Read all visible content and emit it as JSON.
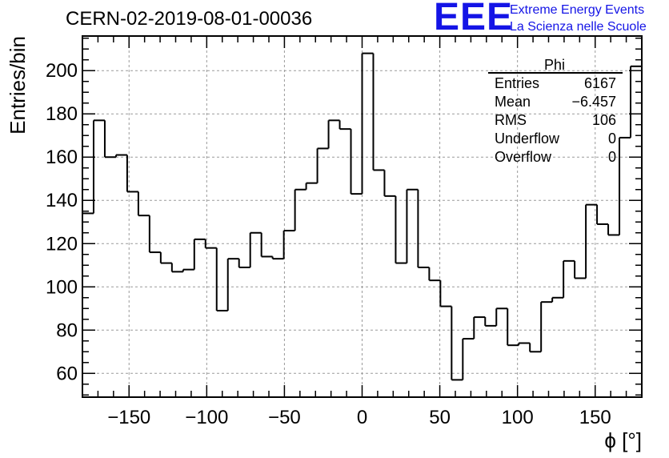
{
  "header": {
    "run_title": "CERN-02-2019-08-01-00036",
    "logo_text": "EEE",
    "logo_line1": "Extreme Energy Events",
    "logo_line2": "La Scienza nelle Scuole"
  },
  "colors": {
    "logo": "#1414e6",
    "histogram": "#000000",
    "grid": "#9a9a9a"
  },
  "stats_box": {
    "title": "Phi",
    "rows": [
      {
        "label": "Entries",
        "value": "6167"
      },
      {
        "label": "Mean",
        "value": "−6.457"
      },
      {
        "label": "RMS",
        "value": "106"
      },
      {
        "label": "Underflow",
        "value": "0"
      },
      {
        "label": "Overflow",
        "value": "0"
      }
    ]
  },
  "chart_data": {
    "type": "histogram",
    "xlabel": "ϕ [°]",
    "ylabel": "Entries/bin",
    "xlim": [
      -180,
      180
    ],
    "ylim": [
      49,
      216
    ],
    "grid": true,
    "bin_width": 7.2,
    "bin_edges_start": -180,
    "x_ticks": [
      -150,
      -100,
      -50,
      0,
      50,
      100,
      150
    ],
    "x_tick_labels": [
      "−150",
      "−100",
      "−50",
      "0",
      "50",
      "100",
      "150"
    ],
    "y_ticks": [
      60,
      80,
      100,
      120,
      140,
      160,
      180,
      200
    ],
    "y_tick_labels": [
      "60",
      "80",
      "100",
      "120",
      "140",
      "160",
      "180",
      "200"
    ],
    "values": [
      134,
      177,
      160,
      161,
      144,
      133,
      116,
      111,
      107,
      108,
      122,
      118,
      89,
      113,
      109,
      125,
      114,
      113,
      126,
      145,
      148,
      164,
      177,
      173,
      143,
      208,
      154,
      142,
      111,
      145,
      109,
      103,
      91,
      57,
      76,
      86,
      82,
      90,
      73,
      74,
      70,
      93,
      95,
      112,
      104,
      138,
      129,
      124,
      169,
      202
    ]
  }
}
